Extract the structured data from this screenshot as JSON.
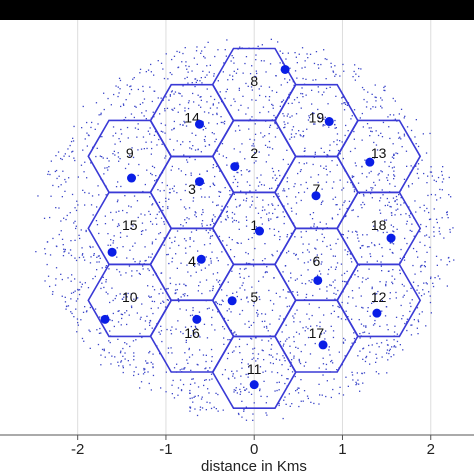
{
  "chart_data": {
    "type": "scatter",
    "xlabel": "distance in Kms",
    "xlim": [
      -2.88,
      2.49
    ],
    "ylim": [
      -2.34,
      2.36
    ],
    "xticks": [
      -2,
      -1,
      0,
      1,
      2
    ],
    "grid": true,
    "cell_radius": 0.47,
    "cell_color": "#3a3ad6",
    "cells": [
      {
        "label": "1",
        "x": 0,
        "y": 0
      },
      {
        "label": "2",
        "x": 0,
        "y": 0.816
      },
      {
        "label": "3",
        "x": -0.705,
        "y": 0.408
      },
      {
        "label": "4",
        "x": -0.705,
        "y": -0.408
      },
      {
        "label": "5",
        "x": 0,
        "y": -0.816
      },
      {
        "label": "6",
        "x": 0.705,
        "y": -0.408
      },
      {
        "label": "7",
        "x": 0.705,
        "y": 0.408
      },
      {
        "label": "8",
        "x": 0,
        "y": 1.63
      },
      {
        "label": "9",
        "x": -1.41,
        "y": 0.816
      },
      {
        "label": "10",
        "x": -1.41,
        "y": -0.816
      },
      {
        "label": "11",
        "x": 0,
        "y": -1.63
      },
      {
        "label": "12",
        "x": 1.41,
        "y": -0.816
      },
      {
        "label": "13",
        "x": 1.41,
        "y": 0.816
      },
      {
        "label": "14",
        "x": -0.705,
        "y": 1.22
      },
      {
        "label": "15",
        "x": -1.41,
        "y": 0
      },
      {
        "label": "16",
        "x": -0.705,
        "y": -1.22
      },
      {
        "label": "17",
        "x": 0.705,
        "y": -1.22
      },
      {
        "label": "18",
        "x": 1.41,
        "y": 0
      },
      {
        "label": "19",
        "x": 0.705,
        "y": 1.22
      }
    ],
    "base_stations": {
      "color": "#0a1ee6",
      "x": [
        0.06,
        -0.22,
        -0.62,
        -0.6,
        -0.25,
        0.72,
        0.7,
        0.35,
        -1.39,
        -1.69,
        0,
        1.39,
        1.31,
        -0.62,
        -1.61,
        -0.65,
        0.78,
        1.55,
        0.85
      ],
      "y": [
        -0.03,
        0.7,
        0.53,
        -0.35,
        -0.82,
        -0.59,
        0.37,
        1.8,
        0.57,
        -1.03,
        -1.77,
        -0.96,
        0.75,
        1.18,
        -0.27,
        -1.03,
        -1.32,
        -0.11,
        1.21
      ]
    }
  }
}
